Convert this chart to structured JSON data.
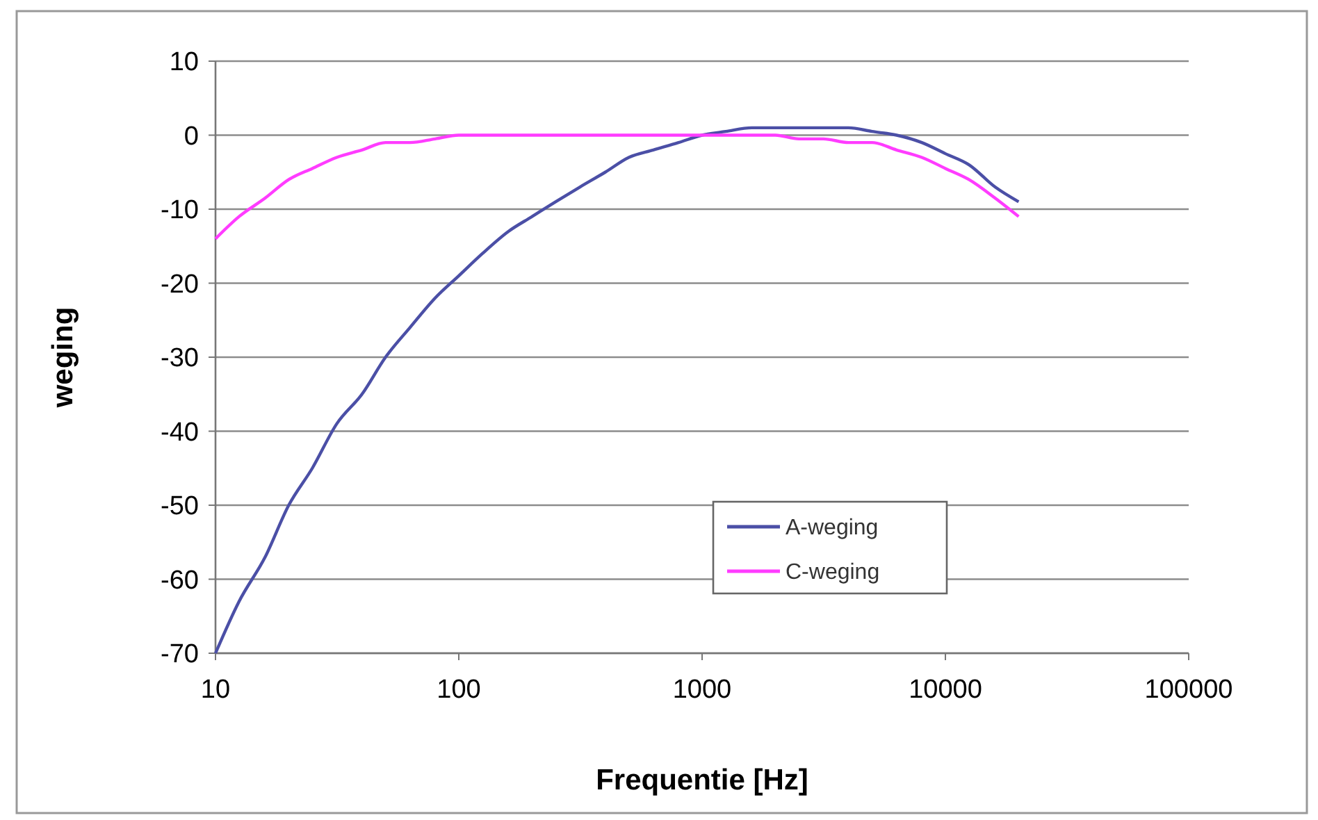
{
  "chart_data": {
    "type": "line",
    "xlabel": "Frequentie [Hz]",
    "ylabel": "weging",
    "log": "x",
    "grid": "y",
    "legend": "bottom right",
    "marker": "none",
    "line_style": "solid",
    "xlim": [
      10,
      100000
    ],
    "xticks": [
      10,
      100,
      1000,
      10000,
      100000
    ],
    "ylim": [
      -70,
      10
    ],
    "yticks": [
      -70,
      -60,
      -50,
      -40,
      -30,
      -20,
      -10,
      0,
      10
    ],
    "x": [
      10,
      12.5,
      16,
      20,
      25,
      31.5,
      40,
      50,
      63,
      80,
      100,
      125,
      160,
      200,
      250,
      315,
      400,
      500,
      630,
      800,
      1000,
      1250,
      1600,
      2000,
      2500,
      3150,
      4000,
      5000,
      6300,
      8000,
      10000,
      12500,
      16000,
      20000
    ],
    "series": [
      {
        "name": "A-weging",
        "color": "#4b4fa6",
        "values": [
          -70,
          -63,
          -57,
          -50,
          -45,
          -39,
          -35,
          -30,
          -26,
          -22,
          -19,
          -16,
          -13,
          -11,
          -9,
          -7,
          -5,
          -3,
          -2,
          -1,
          0,
          0.5,
          1,
          1,
          1,
          1,
          1,
          0.5,
          0,
          -1,
          -2.5,
          -4,
          -7,
          -9
        ]
      },
      {
        "name": "C-weging",
        "color": "#ff3cff",
        "values": [
          -14,
          -11,
          -8.5,
          -6,
          -4.5,
          -3,
          -2,
          -1,
          -1,
          -0.5,
          0,
          0,
          0,
          0,
          0,
          0,
          0,
          0,
          0,
          0,
          0,
          0,
          0,
          0,
          -0.5,
          -0.5,
          -1,
          -1,
          -2,
          -3,
          -4.5,
          -6,
          -8.5,
          -11
        ]
      }
    ]
  }
}
